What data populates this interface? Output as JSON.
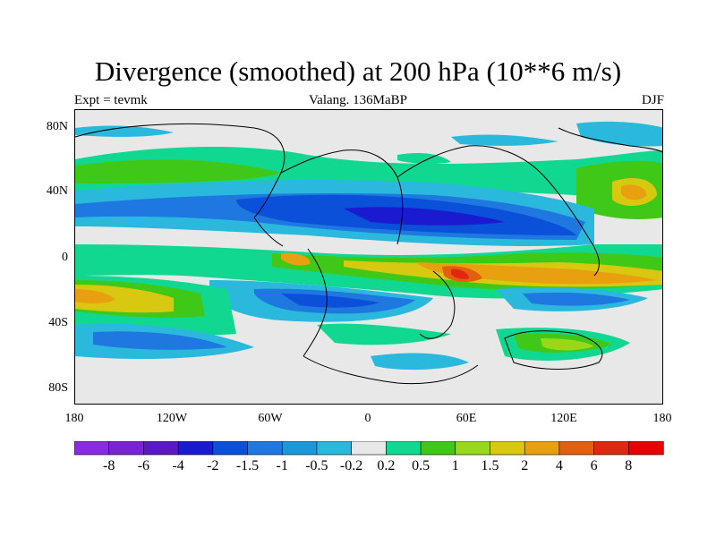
{
  "title": "Divergence (smoothed) at 200 hPa (10**6 m/s)",
  "left_label": "Expt = tevmk",
  "center_label": "Valang. 136MaBP",
  "right_label": "DJF",
  "y_ticks": [
    "80N",
    "40N",
    "0",
    "40S",
    "80S"
  ],
  "x_ticks": [
    "180",
    "120W",
    "60W",
    "0",
    "60E",
    "120E",
    "180"
  ],
  "colorbar": {
    "colors": [
      "#8a2be2",
      "#7a22d8",
      "#5a18c8",
      "#1a1ad0",
      "#0a50d8",
      "#1e78e0",
      "#1a98d8",
      "#2ab8dc",
      "#e8e8e8",
      "#10d890",
      "#40c818",
      "#98d818",
      "#d8c810",
      "#e8a010",
      "#e06010",
      "#e02810",
      "#e80000"
    ],
    "labels": [
      "-8",
      "-6",
      "-4",
      "-2",
      "-1.5",
      "-1",
      "-0.5",
      "-0.2",
      "0.2",
      "0.5",
      "1",
      "1.5",
      "2",
      "4",
      "6",
      "8"
    ]
  }
}
